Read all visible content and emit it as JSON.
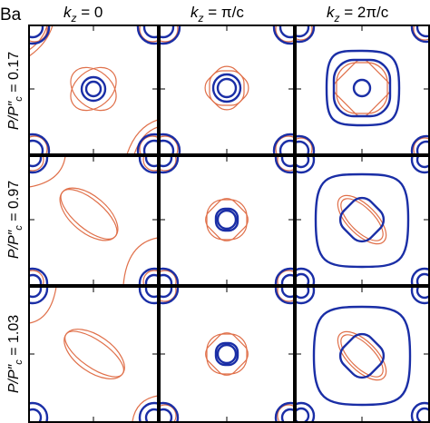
{
  "corner_label": "Ba",
  "columns": [
    {
      "label_var": "k",
      "label_sub": "z",
      "label_rest": " = 0"
    },
    {
      "label_var": "k",
      "label_sub": "z",
      "label_rest": " = π/c"
    },
    {
      "label_var": "k",
      "label_sub": "z",
      "label_rest": " = 2π/c"
    }
  ],
  "rows": [
    {
      "label_var": "P/P",
      "label_quote": "″",
      "label_sub": "c",
      "label_rest": " = 0.17"
    },
    {
      "label_var": "P/P",
      "label_quote": "″",
      "label_sub": "c",
      "label_rest": " = 0.97"
    },
    {
      "label_var": "P/P",
      "label_quote": "″",
      "label_sub": "c",
      "label_rest": " = 1.03"
    }
  ],
  "colors": {
    "blue_band": "#1a2ea6",
    "red_band": "#e0704a",
    "frame": "#000000"
  }
}
